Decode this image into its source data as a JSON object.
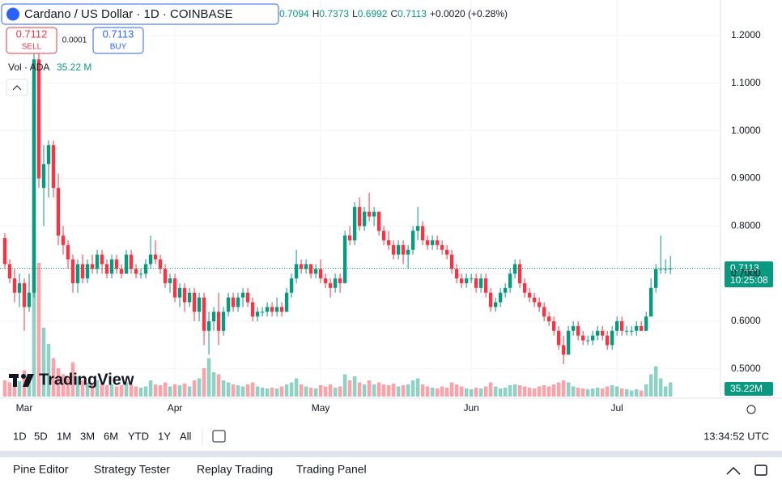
{
  "header": {
    "title": "Cardano / US Dollar · 1D · COINBASE",
    "ohlc": [
      "0.7094",
      "H",
      "0.7373",
      "L",
      "0.6992",
      "C",
      "0.7113",
      "+0.0020 (+0.28%)"
    ],
    "sell_price": "0.7112",
    "sell_label": "SELL",
    "spread": "0.0001",
    "buy_price": "0.7113",
    "buy_label": "BUY",
    "volume_title": "Vol · ADA",
    "volume_value": "35.22 M"
  },
  "watermark": "TradingView",
  "chart_data": {
    "type": "candlestick",
    "up_color": "#089981",
    "down_color": "#f23645",
    "grid": true,
    "xlim": [
      -1,
      147.3
    ],
    "xticks": [
      {
        "value": 4,
        "label": "Mar"
      },
      {
        "value": 35,
        "label": "Apr"
      },
      {
        "value": 65,
        "label": "May"
      },
      {
        "value": 96,
        "label": "Jun"
      },
      {
        "value": 126,
        "label": "Jul"
      }
    ],
    "ylim": [
      0.442,
      1.261
    ],
    "yticks": [
      {
        "value": 0.5,
        "label": "0.5000"
      },
      {
        "value": 0.6,
        "label": "0.6000"
      },
      {
        "value": 0.7,
        "label": "0.7000"
      },
      {
        "value": 0.8,
        "label": "0.8000"
      },
      {
        "value": 0.9,
        "label": "0.9000"
      },
      {
        "value": 1.0,
        "label": "1.0000"
      },
      {
        "value": 1.1,
        "label": "1.1000"
      },
      {
        "value": 1.2,
        "label": "1.2000"
      }
    ],
    "last_price": 0.7113,
    "last_price_label": "0.7113",
    "countdown": "10:25:08",
    "vol_lim": [
      0,
      800
    ],
    "last_volume_label": "35.22M",
    "candles": [
      [
        0.775,
        0.785,
        0.71,
        0.72
      ],
      [
        0.72,
        0.73,
        0.68,
        0.69
      ],
      [
        0.69,
        0.71,
        0.64,
        0.66
      ],
      [
        0.66,
        0.7,
        0.63,
        0.68
      ],
      [
        0.68,
        0.69,
        0.58,
        0.63
      ],
      [
        0.63,
        0.7,
        0.62,
        0.66
      ],
      [
        0.66,
        1.17,
        0.65,
        1.15
      ],
      [
        1.15,
        1.17,
        0.88,
        0.9
      ],
      [
        0.88,
        0.97,
        0.8,
        0.93
      ],
      [
        0.93,
        0.98,
        0.86,
        0.97
      ],
      [
        0.97,
        0.98,
        0.86,
        0.88
      ],
      [
        0.88,
        0.91,
        0.76,
        0.78
      ],
      [
        0.78,
        0.8,
        0.74,
        0.76
      ],
      [
        0.76,
        0.77,
        0.71,
        0.73
      ],
      [
        0.73,
        0.74,
        0.66,
        0.68
      ],
      [
        0.68,
        0.73,
        0.66,
        0.72
      ],
      [
        0.72,
        0.74,
        0.68,
        0.69
      ],
      [
        0.69,
        0.73,
        0.68,
        0.72
      ],
      [
        0.72,
        0.74,
        0.7,
        0.71
      ],
      [
        0.71,
        0.75,
        0.7,
        0.74
      ],
      [
        0.74,
        0.75,
        0.7,
        0.72
      ],
      [
        0.72,
        0.73,
        0.69,
        0.7
      ],
      [
        0.7,
        0.74,
        0.69,
        0.73
      ],
      [
        0.73,
        0.74,
        0.7,
        0.71
      ],
      [
        0.71,
        0.72,
        0.69,
        0.7
      ],
      [
        0.7,
        0.75,
        0.7,
        0.74
      ],
      [
        0.74,
        0.75,
        0.7,
        0.71
      ],
      [
        0.71,
        0.72,
        0.69,
        0.7
      ],
      [
        0.7,
        0.71,
        0.69,
        0.7
      ],
      [
        0.7,
        0.73,
        0.69,
        0.72
      ],
      [
        0.72,
        0.78,
        0.71,
        0.74
      ],
      [
        0.74,
        0.77,
        0.72,
        0.73
      ],
      [
        0.73,
        0.74,
        0.7,
        0.71
      ],
      [
        0.71,
        0.72,
        0.67,
        0.68
      ],
      [
        0.68,
        0.7,
        0.66,
        0.69
      ],
      [
        0.69,
        0.7,
        0.64,
        0.65
      ],
      [
        0.65,
        0.68,
        0.63,
        0.67
      ],
      [
        0.67,
        0.68,
        0.62,
        0.64
      ],
      [
        0.64,
        0.67,
        0.63,
        0.66
      ],
      [
        0.66,
        0.67,
        0.6,
        0.62
      ],
      [
        0.62,
        0.66,
        0.6,
        0.65
      ],
      [
        0.65,
        0.66,
        0.55,
        0.58
      ],
      [
        0.58,
        0.62,
        0.53,
        0.6
      ],
      [
        0.6,
        0.63,
        0.58,
        0.62
      ],
      [
        0.62,
        0.66,
        0.55,
        0.58
      ],
      [
        0.58,
        0.63,
        0.57,
        0.62
      ],
      [
        0.62,
        0.66,
        0.61,
        0.65
      ],
      [
        0.65,
        0.66,
        0.62,
        0.63
      ],
      [
        0.63,
        0.66,
        0.62,
        0.65
      ],
      [
        0.65,
        0.67,
        0.63,
        0.66
      ],
      [
        0.66,
        0.67,
        0.63,
        0.64
      ],
      [
        0.64,
        0.65,
        0.6,
        0.61
      ],
      [
        0.61,
        0.63,
        0.6,
        0.62
      ],
      [
        0.62,
        0.63,
        0.61,
        0.62
      ],
      [
        0.62,
        0.64,
        0.61,
        0.63
      ],
      [
        0.63,
        0.64,
        0.61,
        0.62
      ],
      [
        0.62,
        0.65,
        0.61,
        0.63
      ],
      [
        0.63,
        0.64,
        0.61,
        0.62
      ],
      [
        0.62,
        0.67,
        0.62,
        0.66
      ],
      [
        0.66,
        0.7,
        0.65,
        0.69
      ],
      [
        0.69,
        0.75,
        0.68,
        0.72
      ],
      [
        0.72,
        0.73,
        0.7,
        0.71
      ],
      [
        0.71,
        0.73,
        0.7,
        0.72
      ],
      [
        0.72,
        0.72,
        0.69,
        0.7
      ],
      [
        0.7,
        0.72,
        0.69,
        0.71
      ],
      [
        0.71,
        0.73,
        0.68,
        0.69
      ],
      [
        0.69,
        0.7,
        0.67,
        0.68
      ],
      [
        0.68,
        0.69,
        0.65,
        0.67
      ],
      [
        0.67,
        0.7,
        0.66,
        0.69
      ],
      [
        0.69,
        0.7,
        0.66,
        0.68
      ],
      [
        0.68,
        0.79,
        0.68,
        0.78
      ],
      [
        0.78,
        0.8,
        0.76,
        0.77
      ],
      [
        0.77,
        0.85,
        0.76,
        0.84
      ],
      [
        0.84,
        0.86,
        0.79,
        0.8
      ],
      [
        0.8,
        0.84,
        0.79,
        0.83
      ],
      [
        0.83,
        0.87,
        0.81,
        0.82
      ],
      [
        0.82,
        0.84,
        0.8,
        0.83
      ],
      [
        0.83,
        0.83,
        0.78,
        0.79
      ],
      [
        0.79,
        0.8,
        0.76,
        0.77
      ],
      [
        0.77,
        0.79,
        0.75,
        0.76
      ],
      [
        0.76,
        0.77,
        0.73,
        0.74
      ],
      [
        0.74,
        0.77,
        0.73,
        0.76
      ],
      [
        0.76,
        0.77,
        0.72,
        0.74
      ],
      [
        0.74,
        0.76,
        0.71,
        0.75
      ],
      [
        0.75,
        0.8,
        0.74,
        0.79
      ],
      [
        0.79,
        0.84,
        0.77,
        0.8
      ],
      [
        0.8,
        0.81,
        0.76,
        0.77
      ],
      [
        0.77,
        0.78,
        0.75,
        0.76
      ],
      [
        0.76,
        0.78,
        0.75,
        0.77
      ],
      [
        0.77,
        0.78,
        0.75,
        0.76
      ],
      [
        0.76,
        0.77,
        0.74,
        0.75
      ],
      [
        0.75,
        0.76,
        0.73,
        0.74
      ],
      [
        0.74,
        0.75,
        0.7,
        0.71
      ],
      [
        0.71,
        0.72,
        0.68,
        0.69
      ],
      [
        0.69,
        0.7,
        0.67,
        0.68
      ],
      [
        0.68,
        0.7,
        0.67,
        0.69
      ],
      [
        0.69,
        0.7,
        0.68,
        0.69
      ],
      [
        0.69,
        0.7,
        0.66,
        0.67
      ],
      [
        0.67,
        0.7,
        0.66,
        0.69
      ],
      [
        0.69,
        0.7,
        0.65,
        0.66
      ],
      [
        0.66,
        0.67,
        0.62,
        0.63
      ],
      [
        0.63,
        0.65,
        0.62,
        0.64
      ],
      [
        0.64,
        0.67,
        0.63,
        0.66
      ],
      [
        0.66,
        0.68,
        0.65,
        0.67
      ],
      [
        0.67,
        0.71,
        0.66,
        0.7
      ],
      [
        0.7,
        0.73,
        0.69,
        0.72
      ],
      [
        0.72,
        0.73,
        0.67,
        0.68
      ],
      [
        0.68,
        0.69,
        0.65,
        0.66
      ],
      [
        0.66,
        0.67,
        0.64,
        0.65
      ],
      [
        0.65,
        0.66,
        0.63,
        0.64
      ],
      [
        0.64,
        0.65,
        0.62,
        0.63
      ],
      [
        0.63,
        0.64,
        0.6,
        0.61
      ],
      [
        0.61,
        0.62,
        0.59,
        0.6
      ],
      [
        0.6,
        0.61,
        0.57,
        0.58
      ],
      [
        0.58,
        0.59,
        0.54,
        0.55
      ],
      [
        0.55,
        0.57,
        0.51,
        0.53
      ],
      [
        0.53,
        0.59,
        0.53,
        0.58
      ],
      [
        0.58,
        0.6,
        0.57,
        0.59
      ],
      [
        0.59,
        0.6,
        0.56,
        0.57
      ],
      [
        0.57,
        0.58,
        0.55,
        0.56
      ],
      [
        0.56,
        0.57,
        0.55,
        0.56
      ],
      [
        0.56,
        0.58,
        0.55,
        0.57
      ],
      [
        0.57,
        0.59,
        0.56,
        0.58
      ],
      [
        0.58,
        0.59,
        0.56,
        0.57
      ],
      [
        0.57,
        0.58,
        0.54,
        0.55
      ],
      [
        0.55,
        0.59,
        0.54,
        0.58
      ],
      [
        0.58,
        0.61,
        0.57,
        0.6
      ],
      [
        0.6,
        0.61,
        0.57,
        0.58
      ],
      [
        0.58,
        0.59,
        0.57,
        0.58
      ],
      [
        0.58,
        0.59,
        0.57,
        0.58
      ],
      [
        0.58,
        0.6,
        0.57,
        0.59
      ],
      [
        0.59,
        0.6,
        0.58,
        0.58
      ],
      [
        0.58,
        0.62,
        0.58,
        0.61
      ],
      [
        0.61,
        0.69,
        0.61,
        0.67
      ],
      [
        0.67,
        0.72,
        0.66,
        0.71
      ],
      [
        0.71,
        0.78,
        0.7,
        0.71
      ],
      [
        0.71,
        0.73,
        0.7,
        0.71
      ],
      [
        0.7094,
        0.7373,
        0.6992,
        0.7113
      ]
    ],
    "volumes": [
      40,
      35,
      30,
      38,
      65,
      55,
      780,
      330,
      170,
      130,
      95,
      70,
      55,
      45,
      85,
      50,
      40,
      35,
      30,
      40,
      35,
      28,
      30,
      25,
      28,
      35,
      30,
      25,
      22,
      25,
      40,
      30,
      28,
      35,
      25,
      30,
      28,
      32,
      25,
      40,
      45,
      70,
      95,
      60,
      55,
      40,
      35,
      30,
      28,
      25,
      30,
      35,
      25,
      22,
      20,
      22,
      20,
      25,
      30,
      35,
      45,
      30,
      25,
      22,
      20,
      28,
      25,
      30,
      22,
      25,
      55,
      40,
      50,
      35,
      30,
      40,
      30,
      35,
      30,
      28,
      32,
      25,
      28,
      30,
      40,
      45,
      30,
      25,
      22,
      20,
      25,
      22,
      35,
      30,
      25,
      20,
      18,
      22,
      20,
      25,
      35,
      25,
      20,
      22,
      28,
      30,
      28,
      25,
      22,
      20,
      25,
      28,
      25,
      30,
      35,
      40,
      35,
      25,
      22,
      20,
      18,
      20,
      22,
      20,
      25,
      28,
      25,
      20,
      18,
      15,
      18,
      15,
      30,
      55,
      75,
      45,
      25,
      35.22
    ]
  },
  "toolbar": {
    "ranges": [
      "1D",
      "5D",
      "1M",
      "3M",
      "6M",
      "YTD",
      "1Y",
      "All"
    ],
    "clock": "13:34:52 UTC"
  },
  "bottom_panel": {
    "tabs": [
      "Pine Editor",
      "Strategy Tester",
      "Replay Trading",
      "Trading Panel"
    ]
  }
}
